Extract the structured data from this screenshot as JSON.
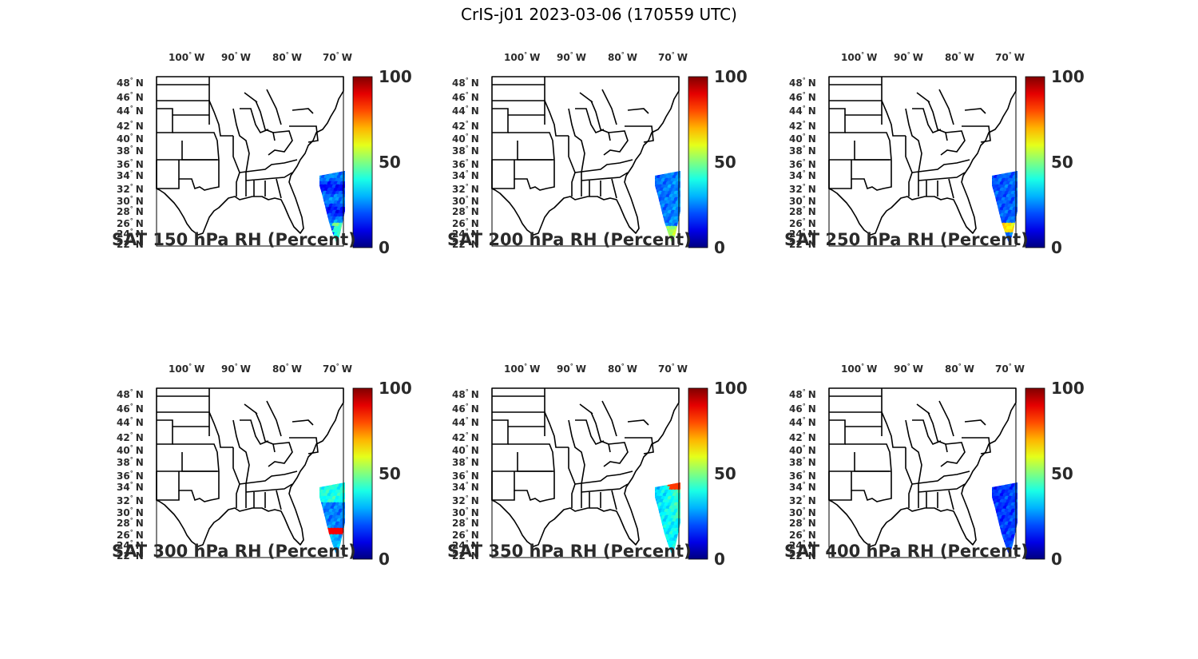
{
  "title": "CrIS-j01 2023-03-06 (170559 UTC)",
  "axes": {
    "lon_labels": [
      "100",
      "90",
      "80",
      "70"
    ],
    "lon_hemisphere": "W",
    "lat_labels": [
      "48",
      "46",
      "44",
      "42",
      "40",
      "38",
      "36",
      "34",
      "32",
      "30",
      "28",
      "26",
      "24",
      "22"
    ],
    "lat_hemisphere": "N",
    "degree_symbol": "°",
    "colorbar_ticks": [
      "100",
      "50",
      "0"
    ]
  },
  "colormap": "jet",
  "colors": {
    "land_outline": "#000000",
    "text": "#2a2a2a",
    "swath_base": "#1f4fe0"
  },
  "panels": [
    {
      "title": "SAT 150 hPa RH (Percent)",
      "level": "150",
      "swath_variant": "mostly-blue"
    },
    {
      "title": "SAT 200 hPa RH (Percent)",
      "level": "200",
      "swath_variant": "blue-cyan-south"
    },
    {
      "title": "SAT 250 hPa RH (Percent)",
      "level": "250",
      "swath_variant": "blue-yellow-south"
    },
    {
      "title": "SAT 300 hPa RH (Percent)",
      "level": "300",
      "swath_variant": "cyan-red-streak"
    },
    {
      "title": "SAT 350 hPa RH (Percent)",
      "level": "350",
      "swath_variant": "cyan-orange-north"
    },
    {
      "title": "SAT 400 hPa RH (Percent)",
      "level": "400",
      "swath_variant": "dark-blue"
    }
  ]
}
